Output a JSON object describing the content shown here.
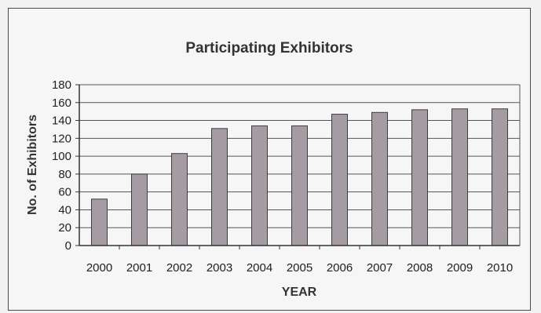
{
  "chart_data": {
    "type": "bar",
    "title": "Participating Exhibitors",
    "xlabel": "YEAR",
    "ylabel": "No. of Exhibitors",
    "categories": [
      "2000",
      "2001",
      "2002",
      "2003",
      "2004",
      "2005",
      "2006",
      "2007",
      "2008",
      "2009",
      "2010"
    ],
    "values": [
      52,
      80,
      103,
      131,
      134,
      134,
      147,
      149,
      152,
      153,
      153
    ],
    "ylim": [
      0,
      180
    ],
    "yticks": [
      0,
      20,
      40,
      60,
      80,
      100,
      120,
      140,
      160,
      180
    ],
    "grid": true,
    "legend": "none",
    "colors": {
      "bar_fill": "#a59ba3",
      "bar_stroke": "#3d3d3d",
      "gridline": "#555555",
      "plot_background": "#f7f6f6"
    }
  }
}
